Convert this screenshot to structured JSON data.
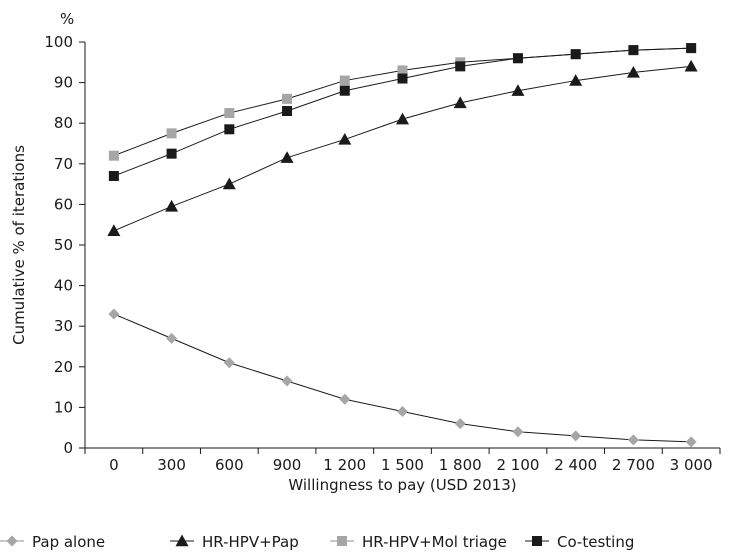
{
  "chart_data": {
    "type": "line",
    "title": "",
    "xlabel": "Willingness to pay (USD 2013)",
    "ylabel": "Cumulative % of iterations",
    "y_unit": "%",
    "categories": [
      "0",
      "300",
      "600",
      "900",
      "1 200",
      "1 500",
      "1 800",
      "2 100",
      "2 400",
      "2 700",
      "3 000"
    ],
    "ylim": [
      0,
      100
    ],
    "yticks": [
      "0",
      "10",
      "20",
      "30",
      "40",
      "50",
      "60",
      "70",
      "80",
      "90",
      "100"
    ],
    "grid": false,
    "legend_position": "bottom",
    "series": [
      {
        "name": "Pap alone",
        "marker": "diamond",
        "color": "#a6a6a6",
        "values": [
          33,
          27,
          21,
          16.5,
          12,
          9,
          6,
          4,
          3,
          2,
          1.5
        ]
      },
      {
        "name": "HR-HPV+Pap",
        "marker": "triangle",
        "color": "#1a1a1a",
        "values": [
          53.5,
          59.5,
          65,
          71.5,
          76,
          81,
          85,
          88,
          90.5,
          92.5,
          94
        ]
      },
      {
        "name": "HR-HPV+Mol triage",
        "marker": "square",
        "color": "#a6a6a6",
        "values": [
          72,
          77.5,
          82.5,
          86,
          90.5,
          93,
          95,
          96,
          97,
          98,
          98.5
        ]
      },
      {
        "name": "Co-testing",
        "marker": "square",
        "color": "#1a1a1a",
        "values": [
          67,
          72.5,
          78.5,
          83,
          88,
          91,
          94,
          96,
          97,
          98,
          98.5
        ]
      }
    ]
  }
}
